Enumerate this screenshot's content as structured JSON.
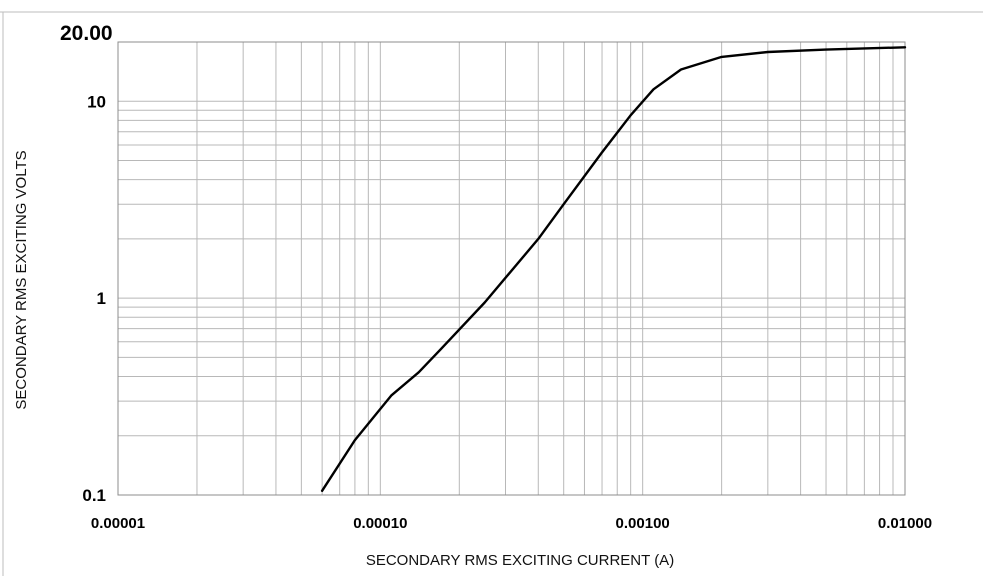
{
  "chart_data": {
    "type": "line",
    "title": "",
    "xlabel": "SECONDARY RMS EXCITING CURRENT (A)",
    "ylabel": "SECONDARY RMS EXCITING VOLTS",
    "x_scale": "log",
    "y_scale": "log",
    "xlim": [
      1e-05,
      0.01
    ],
    "ylim": [
      0.1,
      20.0
    ],
    "x_ticks": [
      {
        "value": 1e-05,
        "label": "0.00001"
      },
      {
        "value": 0.0001,
        "label": "0.00010"
      },
      {
        "value": 0.001,
        "label": "0.00100"
      },
      {
        "value": 0.01,
        "label": "0.01000"
      }
    ],
    "y_ticks": [
      {
        "value": 0.1,
        "label": "0.1"
      },
      {
        "value": 1,
        "label": "1"
      },
      {
        "value": 10,
        "label": "10"
      },
      {
        "value": 20,
        "label": "20.00"
      }
    ],
    "grid": true,
    "legend": "none",
    "series": [
      {
        "color": "#000000",
        "x": [
          6e-05,
          8e-05,
          0.00011,
          0.00014,
          0.00017,
          0.00025,
          0.0004,
          0.0005,
          0.0007,
          0.0009,
          0.0011,
          0.0014,
          0.002,
          0.003,
          0.005,
          0.01
        ],
        "y": [
          0.105,
          0.19,
          0.32,
          0.42,
          0.55,
          0.95,
          2.0,
          3.0,
          5.5,
          8.5,
          11.5,
          14.5,
          16.8,
          17.8,
          18.3,
          18.8
        ]
      }
    ]
  }
}
